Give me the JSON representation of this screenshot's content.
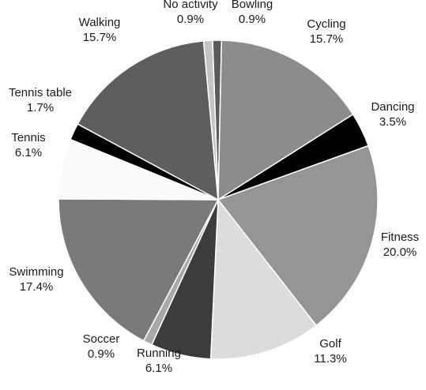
{
  "chart_data": {
    "type": "pie",
    "title": "",
    "start_angle_deg": -2,
    "direction": "clockwise",
    "slices": [
      {
        "label": "Bowling",
        "value": 0.9,
        "display": "0.9%",
        "color": "#5a5a5a"
      },
      {
        "label": "Cycling",
        "value": 15.7,
        "display": "15.7%",
        "color": "#8c8c8c"
      },
      {
        "label": "Dancing",
        "value": 3.5,
        "display": "3.5%",
        "color": "#000000"
      },
      {
        "label": "Fitness",
        "value": 20.0,
        "display": "20.0%",
        "color": "#959595"
      },
      {
        "label": "Golf",
        "value": 11.3,
        "display": "11.3%",
        "color": "#dcdcdc"
      },
      {
        "label": "Running",
        "value": 6.1,
        "display": "6.1%",
        "color": "#3c3c3c"
      },
      {
        "label": "Soccer",
        "value": 0.9,
        "display": "0.9%",
        "color": "#a8a8a8"
      },
      {
        "label": "Swimming",
        "value": 17.4,
        "display": "17.4%",
        "color": "#7a7a7a"
      },
      {
        "label": "Tennis",
        "value": 6.1,
        "display": "6.1%",
        "color": "#fafafa"
      },
      {
        "label": "Tennis table",
        "value": 1.7,
        "display": "1.7%",
        "color": "#000000"
      },
      {
        "label": "Walking",
        "value": 15.7,
        "display": "15.7%",
        "color": "#5e5e5e"
      },
      {
        "label": "No activity",
        "value": 0.9,
        "display": "0.9%",
        "color": "#c4c4c4"
      }
    ]
  }
}
